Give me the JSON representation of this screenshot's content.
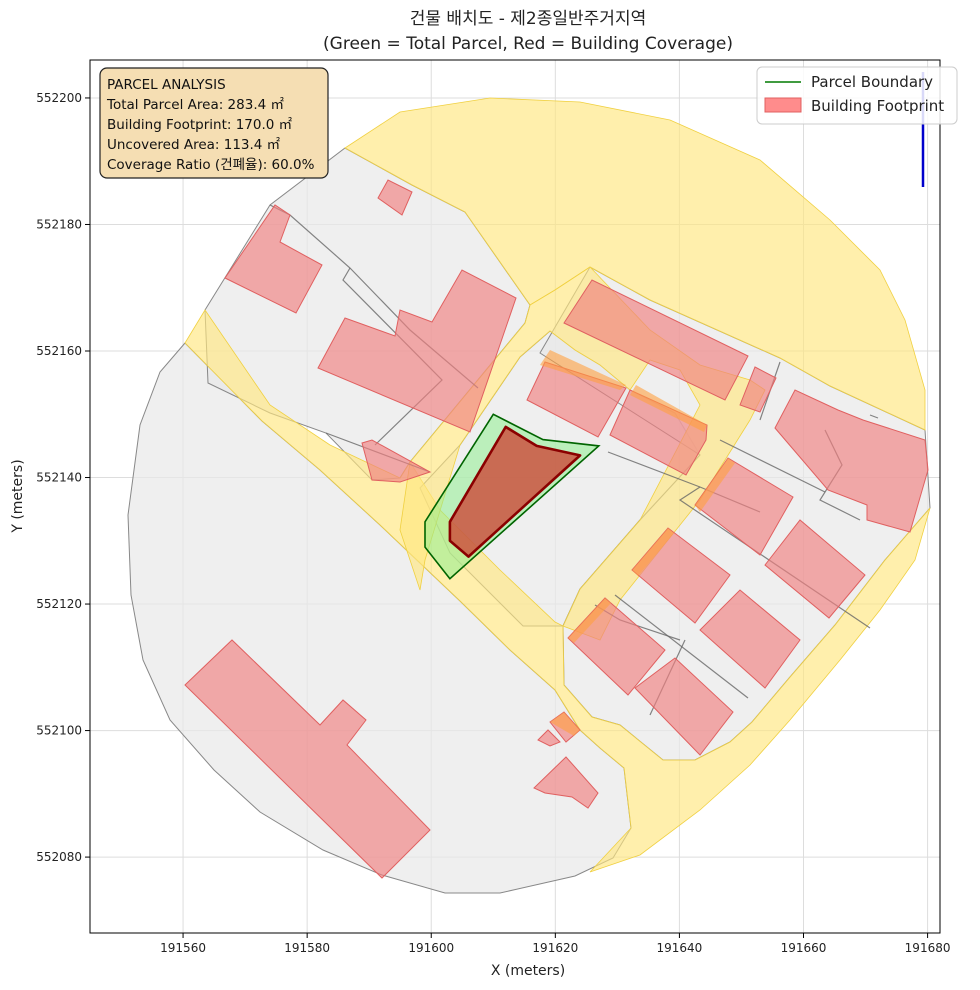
{
  "title": "건물 배치도 - 제2종일반주거지역",
  "subtitle": "(Green = Total Parcel, Red = Building Coverage)",
  "info_box": {
    "heading": "PARCEL ANALYSIS",
    "lines": [
      "Total Parcel Area: 283.4 ㎡",
      "Building Footprint: 170.0 ㎡",
      "Uncovered Area: 113.4 ㎡",
      "Coverage Ratio (건폐율): 60.0%"
    ]
  },
  "legend": [
    {
      "label": "Parcel Boundary",
      "color": "#007a00"
    },
    {
      "label": "Building Footprint",
      "color": "#ff7f7f"
    }
  ],
  "colors": {
    "road": "#ffe680",
    "block": "#e8e8e8",
    "building": "#f08080",
    "parcel_fill": "#90ee90",
    "parcel_edge": "#006400",
    "footprint": "#cd4a3a",
    "footprint_edge": "#8b0000",
    "north_arrow": "#0000cc"
  },
  "chart_data": {
    "type": "map",
    "xlabel": "X (meters)",
    "ylabel": "Y (meters)",
    "xlim": [
      191545,
      191682
    ],
    "ylim": [
      552068,
      552206
    ],
    "xticks": [
      191560,
      191580,
      191600,
      191620,
      191640,
      191660,
      191680
    ],
    "yticks": [
      552080,
      552100,
      552120,
      552140,
      552160,
      552180,
      552200
    ],
    "grid": true,
    "legend_position": "top-right",
    "info_position": "top-left",
    "parcel_boundary": [
      [
        191603,
        552124
      ],
      [
        191599,
        552129
      ],
      [
        191599,
        552133
      ],
      [
        191610,
        552150
      ],
      [
        191618,
        552146
      ],
      [
        191627,
        552145
      ],
      [
        191603,
        552124
      ]
    ],
    "building_footprint": [
      [
        191606,
        552127.5
      ],
      [
        191603,
        552130
      ],
      [
        191603,
        552133
      ],
      [
        191612,
        552148
      ],
      [
        191617,
        552145
      ],
      [
        191624,
        552143.5
      ],
      [
        191606,
        552127.5
      ]
    ]
  }
}
